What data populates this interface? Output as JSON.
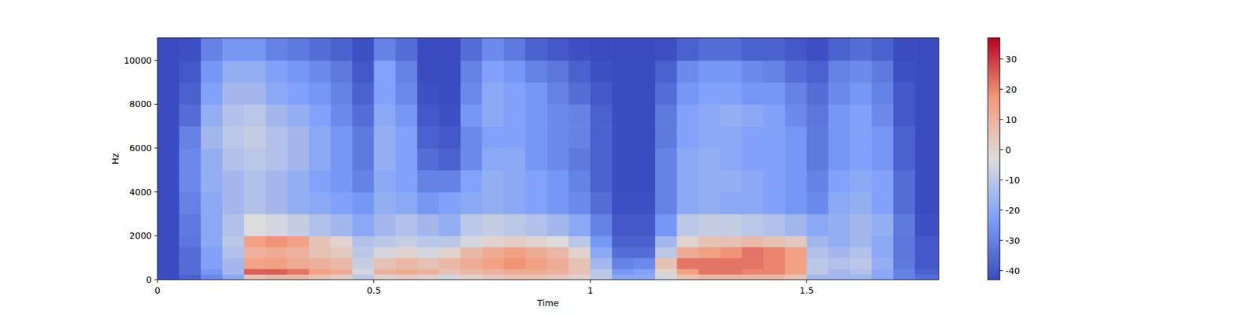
{
  "chart_data": {
    "type": "heatmap",
    "x_label": "Time",
    "y_label": "Hz",
    "color": "coolwarm",
    "xlim": [
      0,
      1.805
    ],
    "ylim": [
      0,
      11025
    ],
    "xticks": [
      0,
      0.5,
      1,
      1.5
    ],
    "yticks": [
      0,
      2000,
      4000,
      6000,
      8000,
      10000
    ],
    "x_bins": [
      0,
      0.05,
      0.1,
      0.15,
      0.2,
      0.25,
      0.3,
      0.35,
      0.4,
      0.45,
      0.5,
      0.55,
      0.6,
      0.65,
      0.7,
      0.75,
      0.8,
      0.85,
      0.9,
      0.95,
      1,
      1.05,
      1.1,
      1.15,
      1.2,
      1.25,
      1.3,
      1.35,
      1.4,
      1.45,
      1.5,
      1.55,
      1.6,
      1.65,
      1.7,
      1.75,
      1.805
    ],
    "y_bins": [
      0,
      250,
      500,
      1000,
      1500,
      2000,
      3000,
      4000,
      5000,
      6000,
      7000,
      8000,
      9000,
      10000,
      11025
    ],
    "cells": [
      [
        -43,
        -38,
        -28,
        -20,
        5,
        8,
        8,
        5,
        2,
        -10,
        0,
        2,
        0,
        -5,
        0,
        3,
        5,
        5,
        3,
        0,
        -10,
        -20,
        -20,
        -5,
        5,
        8,
        8,
        8,
        8,
        5,
        -15,
        -15,
        -15,
        -20,
        -30,
        -35
      ],
      [
        -43,
        -35,
        -25,
        -15,
        25,
        25,
        22,
        15,
        12,
        -5,
        10,
        12,
        10,
        5,
        8,
        10,
        12,
        12,
        10,
        5,
        -10,
        -25,
        -22,
        0,
        15,
        22,
        22,
        20,
        20,
        15,
        -10,
        -15,
        -12,
        -20,
        -30,
        -38
      ],
      [
        -43,
        -35,
        -22,
        -15,
        15,
        15,
        12,
        10,
        8,
        -8,
        5,
        8,
        5,
        8,
        12,
        15,
        18,
        15,
        12,
        5,
        -15,
        -30,
        -28,
        5,
        22,
        22,
        22,
        22,
        20,
        15,
        -10,
        -12,
        -10,
        -18,
        -32,
        -40
      ],
      [
        -43,
        -35,
        -22,
        -12,
        10,
        12,
        10,
        5,
        3,
        -10,
        -5,
        0,
        -5,
        0,
        8,
        12,
        15,
        12,
        8,
        0,
        -20,
        -35,
        -35,
        -10,
        12,
        15,
        18,
        22,
        20,
        15,
        -12,
        -15,
        -12,
        -20,
        -33,
        -40
      ],
      [
        -43,
        -33,
        -20,
        -10,
        15,
        18,
        15,
        5,
        0,
        -12,
        -10,
        -8,
        -10,
        -10,
        -5,
        0,
        2,
        0,
        -3,
        -10,
        -25,
        -38,
        -38,
        -15,
        0,
        5,
        5,
        8,
        5,
        3,
        -15,
        -18,
        -15,
        -20,
        -33,
        -40
      ],
      [
        -43,
        -32,
        -20,
        -12,
        -3,
        -5,
        -8,
        -12,
        -15,
        -20,
        -15,
        -12,
        -15,
        -18,
        -10,
        -8,
        -10,
        -12,
        -15,
        -20,
        -30,
        -40,
        -40,
        -25,
        -10,
        -8,
        -8,
        -10,
        -12,
        -15,
        -20,
        -18,
        -15,
        -18,
        -32,
        -42
      ],
      [
        -43,
        -30,
        -20,
        -15,
        -12,
        -15,
        -18,
        -20,
        -22,
        -25,
        -18,
        -20,
        -25,
        -22,
        -20,
        -18,
        -20,
        -22,
        -25,
        -28,
        -35,
        -42,
        -42,
        -30,
        -20,
        -18,
        -20,
        -20,
        -22,
        -25,
        -28,
        -20,
        -18,
        -22,
        -35,
        -43
      ],
      [
        -43,
        -28,
        -18,
        -15,
        -12,
        -15,
        -18,
        -22,
        -25,
        -30,
        -20,
        -22,
        -30,
        -30,
        -22,
        -18,
        -20,
        -22,
        -25,
        -30,
        -38,
        -43,
        -43,
        -30,
        -20,
        -18,
        -18,
        -20,
        -22,
        -25,
        -30,
        -22,
        -20,
        -22,
        -35,
        -43
      ],
      [
        -43,
        -28,
        -18,
        -12,
        -10,
        -12,
        -15,
        -20,
        -25,
        -32,
        -18,
        -22,
        -35,
        -38,
        -28,
        -20,
        -20,
        -25,
        -28,
        -32,
        -38,
        -43,
        -43,
        -30,
        -20,
        -18,
        -20,
        -22,
        -22,
        -25,
        -32,
        -25,
        -22,
        -25,
        -38,
        -43
      ],
      [
        -43,
        -30,
        -15,
        -10,
        -8,
        -12,
        -15,
        -20,
        -25,
        -32,
        -18,
        -22,
        -38,
        -40,
        -28,
        -22,
        -22,
        -25,
        -28,
        -30,
        -38,
        -43,
        -43,
        -32,
        -22,
        -20,
        -20,
        -22,
        -22,
        -25,
        -32,
        -25,
        -22,
        -25,
        -38,
        -43
      ],
      [
        -43,
        -35,
        -18,
        -12,
        -10,
        -15,
        -18,
        -22,
        -28,
        -35,
        -20,
        -25,
        -40,
        -42,
        -25,
        -20,
        -22,
        -25,
        -28,
        -30,
        -38,
        -43,
        -43,
        -32,
        -22,
        -20,
        -18,
        -20,
        -22,
        -28,
        -33,
        -25,
        -22,
        -28,
        -40,
        -43
      ],
      [
        -43,
        -38,
        -22,
        -15,
        -15,
        -20,
        -22,
        -25,
        -30,
        -38,
        -22,
        -28,
        -42,
        -43,
        -28,
        -20,
        -22,
        -25,
        -30,
        -35,
        -40,
        -43,
        -43,
        -35,
        -25,
        -22,
        -22,
        -25,
        -25,
        -30,
        -35,
        -28,
        -25,
        -30,
        -40,
        -43
      ],
      [
        -43,
        -40,
        -25,
        -18,
        -18,
        -22,
        -25,
        -28,
        -32,
        -40,
        -22,
        -30,
        -43,
        -43,
        -30,
        -22,
        -25,
        -30,
        -33,
        -38,
        -42,
        -43,
        -43,
        -38,
        -28,
        -25,
        -25,
        -28,
        -30,
        -35,
        -38,
        -30,
        -28,
        -32,
        -42,
        -43
      ],
      [
        -43,
        -42,
        -30,
        -25,
        -25,
        -30,
        -32,
        -35,
        -38,
        -42,
        -30,
        -35,
        -43,
        -43,
        -35,
        -28,
        -32,
        -38,
        -40,
        -42,
        -43,
        -43,
        -43,
        -42,
        -38,
        -35,
        -35,
        -38,
        -38,
        -40,
        -42,
        -38,
        -35,
        -38,
        -43,
        -43
      ]
    ],
    "colorbar": {
      "range": [
        -43,
        37
      ],
      "ticks": [
        -40,
        -30,
        -20,
        -10,
        0,
        10,
        20,
        30
      ]
    }
  }
}
